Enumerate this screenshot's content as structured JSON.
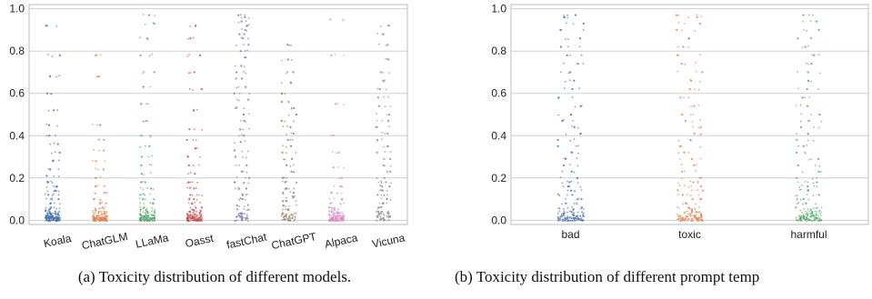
{
  "chart_data": [
    {
      "type": "scatter",
      "style": "strip-plot",
      "caption": "(a) Toxicity distribution of different models.",
      "categories": [
        "Koala",
        "ChatGLM",
        "LLaMa",
        "Oasst",
        "fastChat",
        "ChatGPT",
        "Alpaca",
        "Vicuna"
      ],
      "colors": [
        "#4c72b0",
        "#dd8452",
        "#55a868",
        "#c44e52",
        "#8172b3",
        "#937860",
        "#da8bc3",
        "#8c8c8c"
      ],
      "ylim": [
        -0.02,
        1.02
      ],
      "yticks": [
        "0.0",
        "0.2",
        "0.4",
        "0.6",
        "0.8",
        "1.0"
      ],
      "grid": "horizontal",
      "series": [
        {
          "category": "Koala",
          "values": [
            0.0,
            0.0,
            0.0,
            0.0,
            0.01,
            0.01,
            0.01,
            0.01,
            0.01,
            0.01,
            0.02,
            0.02,
            0.02,
            0.03,
            0.03,
            0.04,
            0.05,
            0.06,
            0.08,
            0.1,
            0.12,
            0.14,
            0.16,
            0.18,
            0.21,
            0.24,
            0.28,
            0.32,
            0.36,
            0.4,
            0.45,
            0.52,
            0.6,
            0.68,
            0.78,
            0.92
          ]
        },
        {
          "category": "ChatGLM",
          "values": [
            0.0,
            0.0,
            0.0,
            0.0,
            0.0,
            0.01,
            0.01,
            0.01,
            0.01,
            0.02,
            0.02,
            0.03,
            0.04,
            0.05,
            0.06,
            0.08,
            0.1,
            0.13,
            0.16,
            0.2,
            0.24,
            0.28,
            0.33,
            0.38,
            0.45,
            0.68,
            0.78
          ]
        },
        {
          "category": "LLaMa",
          "values": [
            0.0,
            0.0,
            0.0,
            0.0,
            0.01,
            0.01,
            0.01,
            0.01,
            0.02,
            0.02,
            0.03,
            0.04,
            0.05,
            0.06,
            0.08,
            0.1,
            0.12,
            0.15,
            0.18,
            0.22,
            0.26,
            0.3,
            0.35,
            0.4,
            0.47,
            0.55,
            0.63,
            0.7,
            0.78,
            0.86,
            0.93,
            0.97
          ]
        },
        {
          "category": "Oasst",
          "values": [
            0.0,
            0.0,
            0.0,
            0.0,
            0.01,
            0.01,
            0.01,
            0.01,
            0.02,
            0.02,
            0.03,
            0.04,
            0.05,
            0.06,
            0.08,
            0.1,
            0.12,
            0.15,
            0.18,
            0.22,
            0.26,
            0.3,
            0.34,
            0.38,
            0.43,
            0.52,
            0.62,
            0.7,
            0.78,
            0.86,
            0.92
          ]
        },
        {
          "category": "fastChat",
          "values": [
            0.0,
            0.01,
            0.02,
            0.03,
            0.05,
            0.07,
            0.1,
            0.12,
            0.15,
            0.18,
            0.2,
            0.23,
            0.26,
            0.3,
            0.33,
            0.37,
            0.4,
            0.43,
            0.47,
            0.5,
            0.53,
            0.57,
            0.6,
            0.63,
            0.67,
            0.7,
            0.73,
            0.77,
            0.8,
            0.83,
            0.86,
            0.88,
            0.9,
            0.92,
            0.94,
            0.96,
            0.97
          ]
        },
        {
          "category": "ChatGPT",
          "values": [
            0.0,
            0.01,
            0.02,
            0.03,
            0.05,
            0.07,
            0.09,
            0.11,
            0.13,
            0.15,
            0.18,
            0.2,
            0.23,
            0.26,
            0.29,
            0.32,
            0.35,
            0.38,
            0.41,
            0.44,
            0.47,
            0.5,
            0.53,
            0.56,
            0.6,
            0.65,
            0.7,
            0.76,
            0.83
          ]
        },
        {
          "category": "Alpaca",
          "values": [
            0.0,
            0.0,
            0.0,
            0.0,
            0.0,
            0.01,
            0.01,
            0.01,
            0.01,
            0.02,
            0.02,
            0.03,
            0.04,
            0.05,
            0.06,
            0.08,
            0.1,
            0.13,
            0.16,
            0.2,
            0.25,
            0.32,
            0.4,
            0.55,
            0.78,
            0.95
          ]
        },
        {
          "category": "Vicuna",
          "values": [
            0.0,
            0.01,
            0.02,
            0.03,
            0.04,
            0.06,
            0.08,
            0.1,
            0.12,
            0.14,
            0.16,
            0.18,
            0.2,
            0.23,
            0.26,
            0.29,
            0.32,
            0.35,
            0.38,
            0.41,
            0.44,
            0.47,
            0.5,
            0.54,
            0.58,
            0.62,
            0.66,
            0.7,
            0.76,
            0.83,
            0.88,
            0.92
          ]
        }
      ]
    },
    {
      "type": "scatter",
      "style": "strip-plot",
      "caption": "(b) Toxicity distribution of different prompt temp",
      "categories": [
        "bad",
        "toxic",
        "harmful"
      ],
      "colors": [
        "#4c72b0",
        "#dd8452",
        "#55a868"
      ],
      "ylim": [
        -0.02,
        1.02
      ],
      "yticks": [
        "0.0",
        "0.2",
        "0.4",
        "0.6",
        "0.8",
        "1.0"
      ],
      "grid": "horizontal",
      "series": [
        {
          "category": "bad",
          "values": [
            0.0,
            0.0,
            0.0,
            0.01,
            0.01,
            0.01,
            0.02,
            0.02,
            0.03,
            0.04,
            0.05,
            0.06,
            0.08,
            0.1,
            0.12,
            0.14,
            0.16,
            0.18,
            0.2,
            0.23,
            0.26,
            0.29,
            0.32,
            0.35,
            0.38,
            0.41,
            0.44,
            0.47,
            0.5,
            0.54,
            0.58,
            0.62,
            0.66,
            0.7,
            0.74,
            0.78,
            0.82,
            0.86,
            0.9,
            0.93,
            0.96,
            0.97
          ]
        },
        {
          "category": "toxic",
          "values": [
            0.0,
            0.0,
            0.0,
            0.01,
            0.01,
            0.01,
            0.02,
            0.02,
            0.03,
            0.04,
            0.05,
            0.06,
            0.08,
            0.1,
            0.12,
            0.14,
            0.16,
            0.18,
            0.2,
            0.23,
            0.26,
            0.29,
            0.32,
            0.35,
            0.38,
            0.41,
            0.44,
            0.47,
            0.5,
            0.54,
            0.58,
            0.62,
            0.66,
            0.7,
            0.74,
            0.78,
            0.82,
            0.86,
            0.9,
            0.93,
            0.96,
            0.97
          ]
        },
        {
          "category": "harmful",
          "values": [
            0.0,
            0.0,
            0.0,
            0.01,
            0.01,
            0.01,
            0.02,
            0.02,
            0.03,
            0.04,
            0.05,
            0.06,
            0.08,
            0.1,
            0.12,
            0.14,
            0.16,
            0.18,
            0.2,
            0.23,
            0.26,
            0.29,
            0.32,
            0.35,
            0.38,
            0.41,
            0.44,
            0.47,
            0.5,
            0.54,
            0.58,
            0.62,
            0.66,
            0.7,
            0.74,
            0.78,
            0.82,
            0.86,
            0.9,
            0.94,
            0.97
          ]
        }
      ]
    }
  ]
}
